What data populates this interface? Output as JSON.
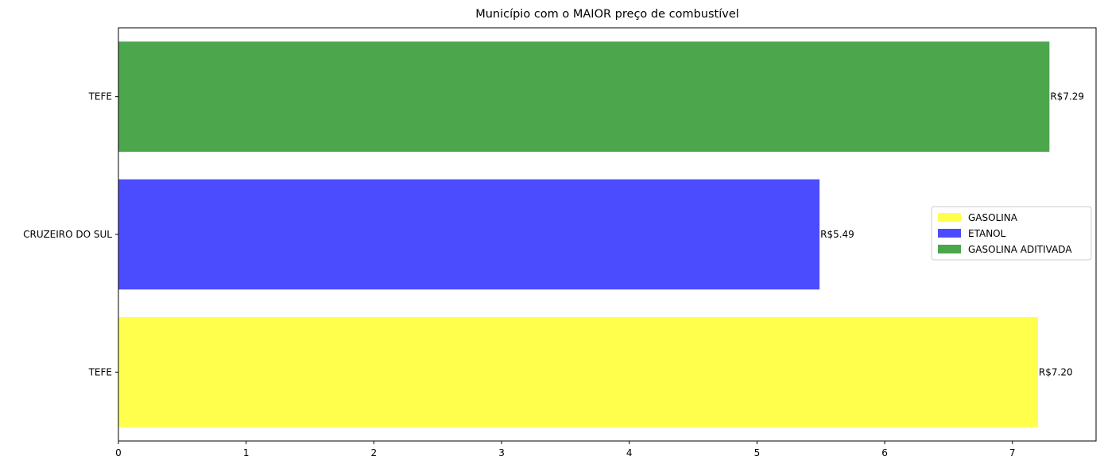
{
  "chart_data": {
    "type": "bar",
    "orientation": "horizontal",
    "title": "Município com o MAIOR preço de combustível",
    "xlabel": "",
    "ylabel": "",
    "xlim": [
      0,
      7.655
    ],
    "x_ticks": [
      0,
      1,
      2,
      3,
      4,
      5,
      6,
      7
    ],
    "grid": false,
    "legend_position": "center-right",
    "categories": [
      "TEFE",
      "CRUZEIRO DO SUL",
      "TEFE"
    ],
    "bars": [
      {
        "category": "TEFE",
        "series": "GASOLINA",
        "value": 7.2,
        "label": "R$7.20",
        "color": "#ffff4c"
      },
      {
        "category": "CRUZEIRO DO SUL",
        "series": "ETANOL",
        "value": 5.49,
        "label": "R$5.49",
        "color": "#4c4cff"
      },
      {
        "category": "TEFE",
        "series": "GASOLINA ADITIVADA",
        "value": 7.29,
        "label": "R$7.29",
        "color": "#4ca64c"
      }
    ],
    "legend": [
      {
        "name": "GASOLINA",
        "color": "#ffff4c"
      },
      {
        "name": "ETANOL",
        "color": "#4c4cff"
      },
      {
        "name": "GASOLINA ADITIVADA",
        "color": "#4ca64c"
      }
    ]
  }
}
